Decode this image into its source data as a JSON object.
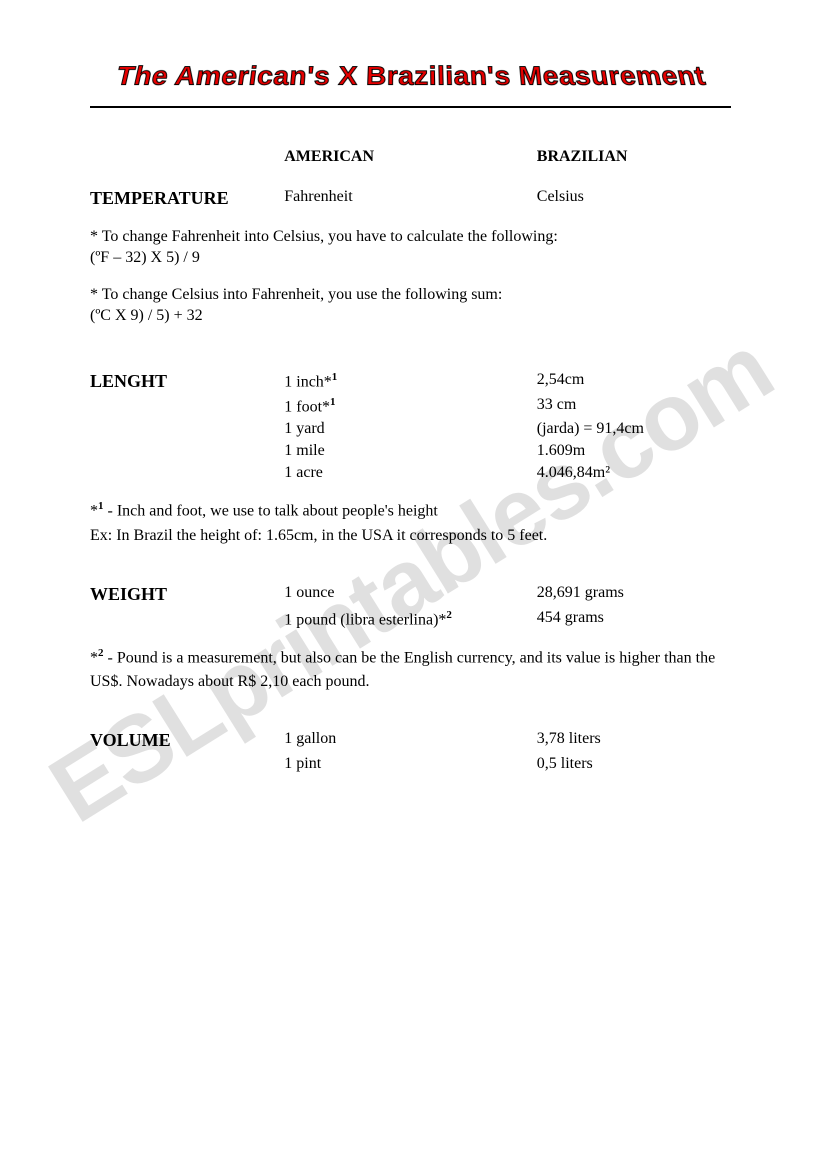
{
  "page": {
    "title": "The American's X Brazilian's Measurement",
    "header": {
      "american": "AMERICAN",
      "brazilian": "BRAZILIAN"
    },
    "temperature": {
      "label": "TEMPERATURE",
      "american": "Fahrenheit",
      "brazilian": "Celsius",
      "note1": "* To change Fahrenheit into Celsius, you have to calculate the following:",
      "formula1": "(ºF – 32) X 5) / 9",
      "note2": "* To change Celsius into Fahrenheit, you use the following sum:",
      "formula2": "(ºC X 9) / 5) + 32"
    },
    "length": {
      "label": "LENGHT",
      "rows": [
        {
          "american": "1 inch*",
          "sup": "1",
          "brazilian": "2,54cm"
        },
        {
          "american": "1 foot*",
          "sup": "1",
          "brazilian": "33 cm"
        },
        {
          "american": "1 yard",
          "sup": "",
          "brazilian": "(jarda) = 91,4cm"
        },
        {
          "american": "1 mile",
          "sup": "",
          "brazilian": "1.609m"
        },
        {
          "american": "1 acre",
          "sup": "",
          "brazilian": "4.046,84m²"
        }
      ],
      "footnote_marker": "*",
      "footnote_sup": "1",
      "footnote_text": " - Inch and foot, we use to talk about people's height",
      "footnote_ex": "Ex: In Brazil the height of: 1.65cm, in the USA it corresponds to 5 feet."
    },
    "weight": {
      "label": "WEIGHT",
      "rows": [
        {
          "american": "1 ounce",
          "sup": "",
          "brazilian": "28,691 grams"
        },
        {
          "american": "1 pound (libra esterlina)*",
          "sup": "2",
          "brazilian": "454 grams"
        }
      ],
      "footnote_marker": "*",
      "footnote_sup": "2",
      "footnote_text": " - Pound is a measurement, but also can be the English currency, and its value is higher than the US$. Nowadays about R$ 2,10 each pound."
    },
    "volume": {
      "label": "VOLUME",
      "rows": [
        {
          "american": "1 gallon",
          "brazilian": "3,78 liters"
        },
        {
          "american": "1 pint",
          "brazilian": "0,5 liters"
        }
      ]
    }
  },
  "watermark": "ESLprintables.com",
  "colors": {
    "title_fill": "#e60000",
    "title_stroke": "#000000",
    "text": "#000000",
    "background": "#ffffff",
    "watermark": "rgba(0,0,0,0.12)"
  },
  "fonts": {
    "title": "Comic Sans MS",
    "body": "Times New Roman",
    "title_size": 28,
    "label_size": 18,
    "body_size": 16
  }
}
